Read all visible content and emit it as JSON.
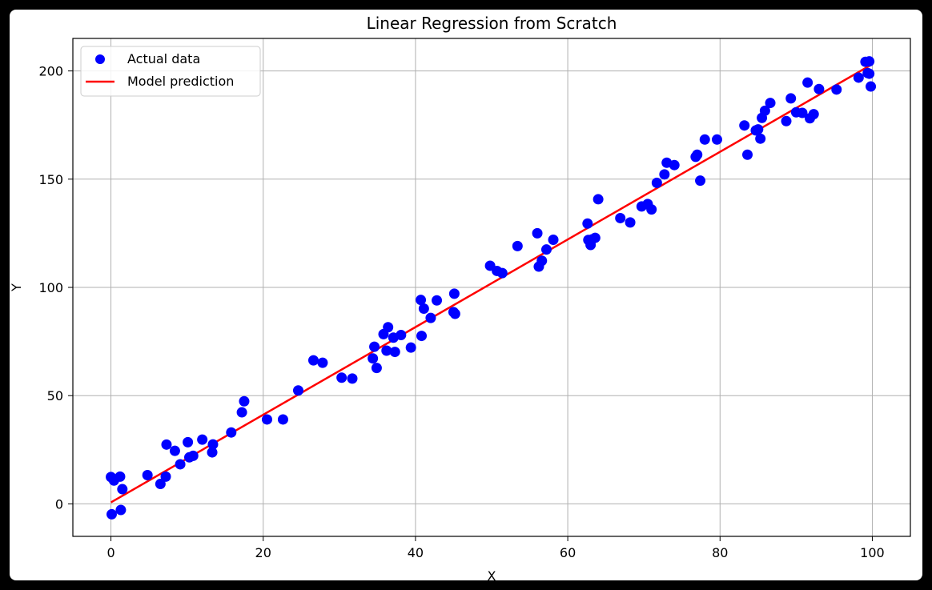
{
  "chart_data": {
    "type": "scatter",
    "title": "Linear Regression from Scratch",
    "xlabel": "X",
    "ylabel": "Y",
    "xlim": [
      -5,
      105
    ],
    "ylim": [
      -15,
      215
    ],
    "xticks": [
      0,
      20,
      40,
      60,
      80,
      100
    ],
    "yticks": [
      0,
      50,
      100,
      150,
      200
    ],
    "grid": true,
    "legend_position": "top-left",
    "series": [
      {
        "name": "Actual data",
        "kind": "scatter",
        "color": "#0000ff",
        "points": [
          [
            0.0,
            12.4
          ],
          [
            0.1,
            -4.8
          ],
          [
            0.4,
            10.8
          ],
          [
            1.2,
            12.6
          ],
          [
            1.3,
            -2.8
          ],
          [
            1.5,
            6.8
          ],
          [
            4.8,
            13.3
          ],
          [
            6.5,
            9.2
          ],
          [
            7.2,
            12.6
          ],
          [
            7.3,
            27.4
          ],
          [
            8.4,
            24.5
          ],
          [
            9.1,
            18.3
          ],
          [
            10.1,
            28.5
          ],
          [
            10.3,
            21.5
          ],
          [
            10.8,
            22.2
          ],
          [
            12.0,
            29.7
          ],
          [
            13.3,
            23.8
          ],
          [
            13.4,
            27.5
          ],
          [
            15.8,
            33.0
          ],
          [
            17.2,
            42.3
          ],
          [
            17.5,
            47.4
          ],
          [
            20.5,
            39.0
          ],
          [
            22.6,
            39.0
          ],
          [
            24.6,
            52.4
          ],
          [
            26.6,
            66.3
          ],
          [
            27.8,
            65.2
          ],
          [
            30.3,
            58.3
          ],
          [
            31.7,
            57.9
          ],
          [
            34.4,
            67.2
          ],
          [
            34.6,
            72.6
          ],
          [
            34.9,
            62.8
          ],
          [
            35.8,
            78.4
          ],
          [
            36.2,
            70.8
          ],
          [
            36.4,
            81.6
          ],
          [
            37.1,
            76.8
          ],
          [
            37.3,
            70.2
          ],
          [
            38.1,
            78.0
          ],
          [
            39.4,
            72.2
          ],
          [
            40.7,
            94.2
          ],
          [
            40.8,
            77.6
          ],
          [
            41.1,
            90.2
          ],
          [
            42.0,
            85.9
          ],
          [
            42.8,
            94.0
          ],
          [
            45.0,
            88.6
          ],
          [
            45.1,
            97.1
          ],
          [
            45.2,
            87.8
          ],
          [
            49.8,
            110.0
          ],
          [
            50.7,
            107.6
          ],
          [
            51.4,
            106.6
          ],
          [
            53.4,
            119.1
          ],
          [
            56.0,
            125.0
          ],
          [
            56.2,
            109.6
          ],
          [
            56.6,
            112.3
          ],
          [
            57.2,
            117.5
          ],
          [
            58.1,
            122.0
          ],
          [
            62.6,
            129.5
          ],
          [
            62.7,
            121.9
          ],
          [
            63.0,
            119.6
          ],
          [
            63.2,
            122.2
          ],
          [
            63.6,
            122.9
          ],
          [
            64.0,
            140.7
          ],
          [
            66.9,
            132.0
          ],
          [
            68.2,
            130.0
          ],
          [
            69.7,
            137.4
          ],
          [
            70.5,
            138.5
          ],
          [
            71.0,
            136.0
          ],
          [
            71.7,
            148.3
          ],
          [
            72.7,
            152.2
          ],
          [
            73.0,
            157.6
          ],
          [
            74.0,
            156.5
          ],
          [
            76.8,
            160.3
          ],
          [
            77.0,
            161.3
          ],
          [
            77.4,
            149.3
          ],
          [
            78.0,
            168.3
          ],
          [
            79.6,
            168.3
          ],
          [
            83.2,
            174.8
          ],
          [
            83.6,
            161.3
          ],
          [
            84.7,
            172.5
          ],
          [
            85.0,
            173.0
          ],
          [
            85.3,
            168.7
          ],
          [
            85.5,
            178.3
          ],
          [
            85.9,
            181.6
          ],
          [
            86.6,
            185.2
          ],
          [
            88.7,
            176.8
          ],
          [
            89.3,
            187.3
          ],
          [
            90.0,
            180.9
          ],
          [
            90.8,
            180.6
          ],
          [
            91.5,
            194.6
          ],
          [
            91.8,
            178.1
          ],
          [
            92.3,
            180.0
          ],
          [
            93.0,
            191.6
          ],
          [
            95.3,
            191.4
          ],
          [
            98.2,
            196.9
          ],
          [
            99.1,
            204.2
          ],
          [
            99.4,
            199.0
          ],
          [
            99.6,
            204.4
          ],
          [
            99.6,
            198.7
          ],
          [
            99.8,
            192.8
          ]
        ]
      },
      {
        "name": "Model prediction",
        "kind": "line",
        "color": "#ff0000",
        "points": [
          [
            0.0,
            0.7
          ],
          [
            99.8,
            202.7
          ]
        ]
      }
    ]
  }
}
